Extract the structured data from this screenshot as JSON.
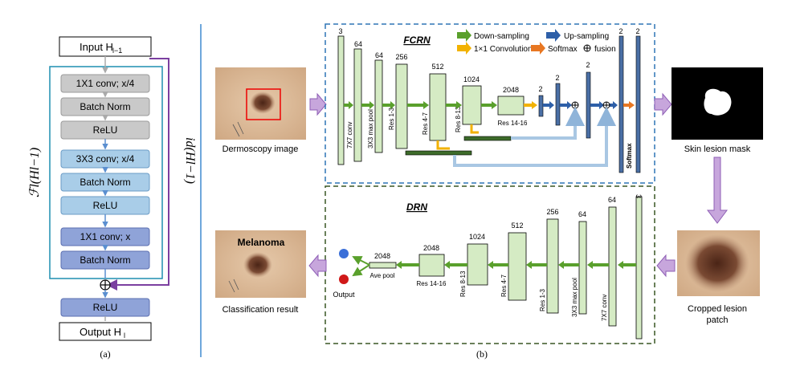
{
  "panel_a": {
    "input_label": "Input H",
    "input_sub": "l−1",
    "output_label": "Output H",
    "output_sub": "l",
    "residual_func": "ℱl(Hl−1)",
    "identity_func": "id(Hl−1)",
    "layers": [
      "1X1 conv; x/4",
      "Batch Norm",
      "ReLU",
      "3X3 conv; x/4",
      "Batch Norm",
      "ReLU",
      "1X1 conv; x",
      "Batch Norm"
    ],
    "final_relu": "ReLU",
    "caption": "(a)"
  },
  "panel_b": {
    "caption": "(b)",
    "fcrn_title": "FCRN",
    "drn_title": "DRN",
    "legend": {
      "down": "Down-sampling",
      "up": "Up-sampling",
      "conv1x1": "1×1 Convolution",
      "softmax": "Softmax",
      "fusion": "fusion",
      "colors": {
        "down": "#5aa02c",
        "up": "#2e5fa8",
        "conv1x1": "#f2b200",
        "softmax": "#e87722"
      }
    },
    "fcrn": {
      "channels": [
        "3",
        "64",
        "64",
        "256",
        "512",
        "1024",
        "2048",
        "2",
        "2",
        "2",
        "2",
        "2"
      ],
      "labels": [
        "7X7 conv",
        "3X3 max pool",
        "Res 1-3",
        "Res 4-7",
        "Res 8-13",
        "Res 14-16",
        "Softmax"
      ]
    },
    "drn": {
      "channels": [
        "3",
        "64",
        "64",
        "256",
        "512",
        "1024",
        "2048",
        "2048"
      ],
      "labels": [
        "7X7 conv",
        "3X3 max pool",
        "Res 1-3",
        "Res 4-7",
        "Res 8-13",
        "Res 14-16",
        "Ave pool"
      ],
      "output_label": "Output"
    },
    "images": {
      "dermoscopy": "Dermoscopy image",
      "mask": "Skin lesion mask",
      "cropped_1": "Cropped lesion",
      "cropped_2": "patch",
      "result": "Classification result",
      "melanoma": "Melanoma"
    }
  }
}
